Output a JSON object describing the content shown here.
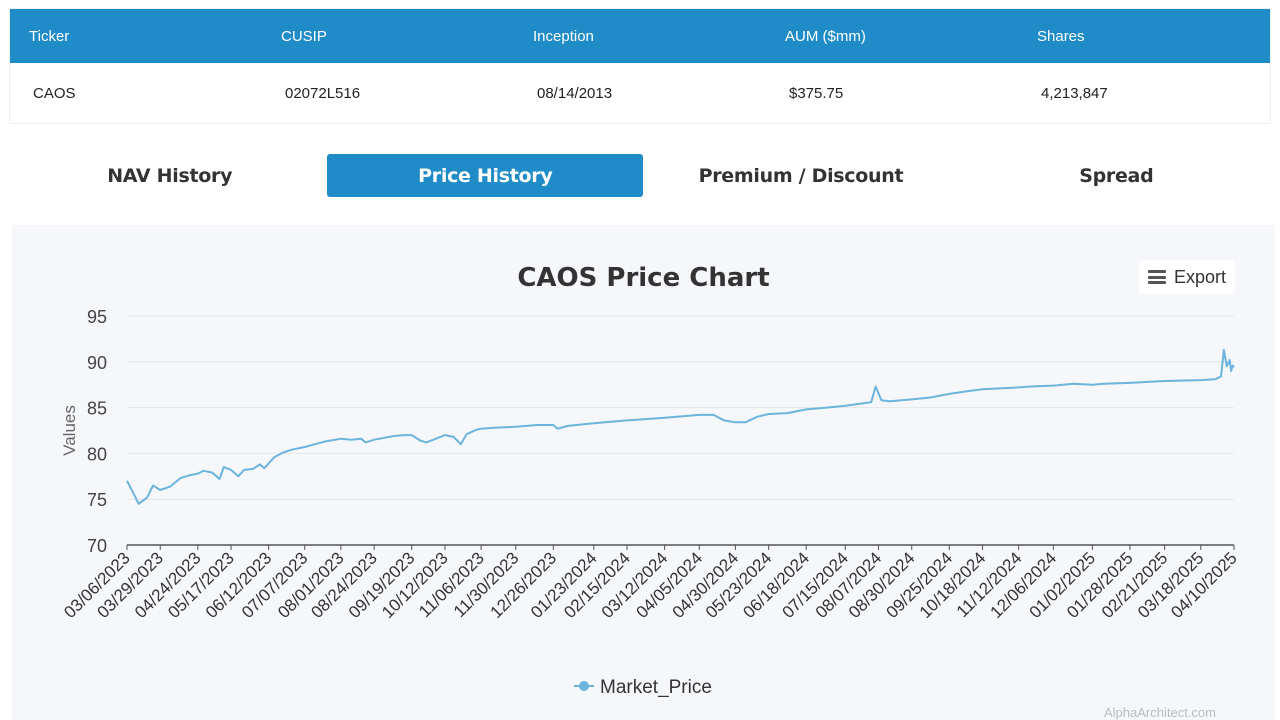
{
  "fund_table": {
    "headers": [
      "Ticker",
      "CUSIP",
      "Inception",
      "AUM ($mm)",
      "Shares"
    ],
    "row": [
      "CAOS",
      "02072L516",
      "08/14/2013",
      "$375.75",
      "4,213,847"
    ]
  },
  "tabs": [
    {
      "label": "NAV History",
      "active": false
    },
    {
      "label": "Price History",
      "active": true
    },
    {
      "label": "Premium / Discount",
      "active": false
    },
    {
      "label": "Spread",
      "active": false
    }
  ],
  "export": {
    "label": "Export",
    "icon": "hamburger-menu-icon"
  },
  "watermark": "AlphaArchitect.com",
  "chart_data": {
    "type": "line",
    "title": "CAOS Price Chart",
    "ylabel": "Values",
    "ylim": [
      70,
      95
    ],
    "yticks": [
      70,
      75,
      80,
      85,
      90,
      95
    ],
    "grid": true,
    "legend": "bottom",
    "x_tick_labels": [
      "03/06/2023",
      "03/29/2023",
      "04/24/2023",
      "05/17/2023",
      "06/12/2023",
      "07/07/2023",
      "08/01/2023",
      "08/24/2023",
      "09/19/2023",
      "10/12/2023",
      "11/06/2023",
      "11/30/2023",
      "12/26/2023",
      "01/23/2024",
      "02/15/2024",
      "03/12/2024",
      "04/05/2024",
      "04/30/2024",
      "05/23/2024",
      "06/18/2024",
      "07/15/2024",
      "08/07/2024",
      "08/30/2024",
      "09/25/2024",
      "10/18/2024",
      "11/12/2024",
      "12/06/2024",
      "01/02/2025",
      "01/28/2025",
      "02/21/2025",
      "03/18/2025",
      "04/10/2025"
    ],
    "series": [
      {
        "name": "Market_Price",
        "color": "#6cb4dc",
        "points": [
          [
            "03/06/2023",
            77.0
          ],
          [
            "03/10/2023",
            75.8
          ],
          [
            "03/14/2023",
            74.5
          ],
          [
            "03/20/2023",
            75.2
          ],
          [
            "03/24/2023",
            76.5
          ],
          [
            "03/29/2023",
            76.0
          ],
          [
            "04/05/2023",
            76.4
          ],
          [
            "04/12/2023",
            77.3
          ],
          [
            "04/18/2023",
            77.6
          ],
          [
            "04/24/2023",
            77.8
          ],
          [
            "04/28/2023",
            78.1
          ],
          [
            "05/04/2023",
            77.9
          ],
          [
            "05/09/2023",
            77.2
          ],
          [
            "05/12/2023",
            78.5
          ],
          [
            "05/17/2023",
            78.2
          ],
          [
            "05/22/2023",
            77.5
          ],
          [
            "05/26/2023",
            78.2
          ],
          [
            "06/01/2023",
            78.3
          ],
          [
            "06/06/2023",
            78.8
          ],
          [
            "06/09/2023",
            78.4
          ],
          [
            "06/12/2023",
            78.9
          ],
          [
            "06/16/2023",
            79.6
          ],
          [
            "06/22/2023",
            80.1
          ],
          [
            "06/28/2023",
            80.4
          ],
          [
            "07/07/2023",
            80.7
          ],
          [
            "07/14/2023",
            81.0
          ],
          [
            "07/21/2023",
            81.3
          ],
          [
            "08/01/2023",
            81.6
          ],
          [
            "08/08/2023",
            81.5
          ],
          [
            "08/15/2023",
            81.6
          ],
          [
            "08/18/2023",
            81.2
          ],
          [
            "08/24/2023",
            81.5
          ],
          [
            "08/31/2023",
            81.7
          ],
          [
            "09/07/2023",
            81.9
          ],
          [
            "09/14/2023",
            82.0
          ],
          [
            "09/19/2023",
            82.0
          ],
          [
            "09/25/2023",
            81.4
          ],
          [
            "09/29/2023",
            81.2
          ],
          [
            "10/04/2023",
            81.5
          ],
          [
            "10/12/2023",
            82.0
          ],
          [
            "10/18/2023",
            81.8
          ],
          [
            "10/23/2023",
            81.0
          ],
          [
            "10/27/2023",
            82.1
          ],
          [
            "11/03/2023",
            82.6
          ],
          [
            "11/06/2023",
            82.7
          ],
          [
            "11/15/2023",
            82.8
          ],
          [
            "11/30/2023",
            82.9
          ],
          [
            "12/15/2023",
            83.1
          ],
          [
            "12/26/2023",
            83.1
          ],
          [
            "12/29/2023",
            82.7
          ],
          [
            "01/05/2024",
            83.0
          ],
          [
            "01/23/2024",
            83.3
          ],
          [
            "02/15/2024",
            83.6
          ],
          [
            "03/12/2024",
            83.9
          ],
          [
            "04/05/2024",
            84.2
          ],
          [
            "04/15/2024",
            84.2
          ],
          [
            "04/22/2024",
            83.6
          ],
          [
            "04/30/2024",
            83.4
          ],
          [
            "05/07/2024",
            83.4
          ],
          [
            "05/15/2024",
            84.0
          ],
          [
            "05/23/2024",
            84.3
          ],
          [
            "06/05/2024",
            84.4
          ],
          [
            "06/18/2024",
            84.8
          ],
          [
            "07/02/2024",
            85.0
          ],
          [
            "07/15/2024",
            85.2
          ],
          [
            "07/29/2024",
            85.5
          ],
          [
            "08/02/2024",
            85.6
          ],
          [
            "08/05/2024",
            87.3
          ],
          [
            "08/09/2024",
            85.8
          ],
          [
            "08/15/2024",
            85.7
          ],
          [
            "08/30/2024",
            85.9
          ],
          [
            "09/12/2024",
            86.1
          ],
          [
            "09/25/2024",
            86.5
          ],
          [
            "10/08/2024",
            86.8
          ],
          [
            "10/18/2024",
            87.0
          ],
          [
            "11/12/2024",
            87.2
          ],
          [
            "11/20/2024",
            87.3
          ],
          [
            "12/06/2024",
            87.4
          ],
          [
            "12/20/2024",
            87.6
          ],
          [
            "01/02/2025",
            87.5
          ],
          [
            "01/10/2025",
            87.6
          ],
          [
            "01/28/2025",
            87.7
          ],
          [
            "02/21/2025",
            87.9
          ],
          [
            "03/18/2025",
            88.0
          ],
          [
            "03/28/2025",
            88.1
          ],
          [
            "04/01/2025",
            88.4
          ],
          [
            "04/03/2025",
            91.3
          ],
          [
            "04/05/2025",
            89.5
          ],
          [
            "04/07/2025",
            90.2
          ],
          [
            "04/08/2025",
            89.0
          ],
          [
            "04/09/2025",
            89.6
          ],
          [
            "04/10/2025",
            89.4
          ]
        ]
      }
    ]
  }
}
